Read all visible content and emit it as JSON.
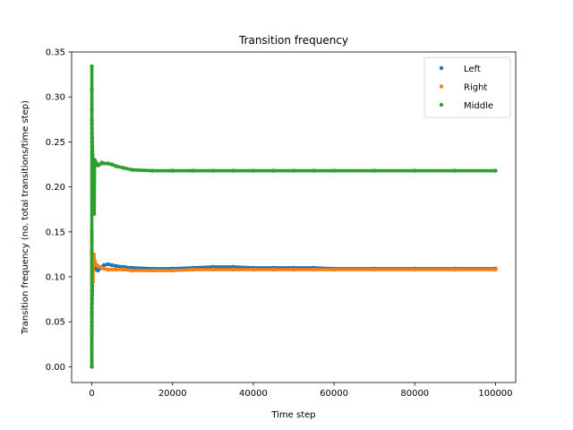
{
  "chart_data": {
    "type": "scatter",
    "title": "Transition frequency",
    "xlabel": "Time step",
    "ylabel": "Transition frequency (no. total transitions/time step)",
    "xlim": [
      -5000,
      105000
    ],
    "ylim": [
      -0.0175,
      0.35
    ],
    "xticks": [
      0,
      20000,
      40000,
      60000,
      80000,
      100000
    ],
    "xtick_labels": [
      "0",
      "20000",
      "40000",
      "60000",
      "80000",
      "100000"
    ],
    "yticks": [
      0.0,
      0.05,
      0.1,
      0.15,
      0.2,
      0.25,
      0.3,
      0.35
    ],
    "ytick_labels": [
      "0.00",
      "0.05",
      "0.10",
      "0.15",
      "0.20",
      "0.25",
      "0.30",
      "0.35"
    ],
    "grid": false,
    "legend_position": "top-right",
    "series": [
      {
        "name": "Left",
        "color": "#1f77b4",
        "points": [
          [
            0,
            0.0
          ],
          [
            5,
            0.04
          ],
          [
            10,
            0.045
          ],
          [
            15,
            0.05
          ],
          [
            20,
            0.06
          ],
          [
            30,
            0.065
          ],
          [
            40,
            0.07
          ],
          [
            60,
            0.075
          ],
          [
            80,
            0.08
          ],
          [
            100,
            0.085
          ],
          [
            130,
            0.09
          ],
          [
            160,
            0.095
          ],
          [
            200,
            0.1
          ],
          [
            250,
            0.104
          ],
          [
            300,
            0.108
          ],
          [
            400,
            0.112
          ],
          [
            500,
            0.115
          ],
          [
            700,
            0.113
          ],
          [
            900,
            0.11
          ],
          [
            1200,
            0.108
          ],
          [
            1500,
            0.107
          ],
          [
            2000,
            0.109
          ],
          [
            2500,
            0.111
          ],
          [
            3000,
            0.113
          ],
          [
            4000,
            0.114
          ],
          [
            5000,
            0.113
          ],
          [
            6000,
            0.112
          ],
          [
            8000,
            0.111
          ],
          [
            10000,
            0.11
          ],
          [
            15000,
            0.109
          ],
          [
            20000,
            0.109
          ],
          [
            25000,
            0.11
          ],
          [
            30000,
            0.111
          ],
          [
            35000,
            0.111
          ],
          [
            40000,
            0.11
          ],
          [
            45000,
            0.11
          ],
          [
            50000,
            0.11
          ],
          [
            55000,
            0.11
          ],
          [
            60000,
            0.109
          ],
          [
            70000,
            0.109
          ],
          [
            80000,
            0.109
          ],
          [
            90000,
            0.109
          ],
          [
            100000,
            0.109
          ]
        ]
      },
      {
        "name": "Right",
        "color": "#ff7f0e",
        "points": [
          [
            0,
            0.0
          ],
          [
            5,
            0.15
          ],
          [
            10,
            0.145
          ],
          [
            15,
            0.14
          ],
          [
            20,
            0.13
          ],
          [
            30,
            0.125
          ],
          [
            40,
            0.12
          ],
          [
            60,
            0.118
          ],
          [
            80,
            0.115
          ],
          [
            100,
            0.113
          ],
          [
            130,
            0.11
          ],
          [
            160,
            0.108
          ],
          [
            200,
            0.105
          ],
          [
            250,
            0.1
          ],
          [
            300,
            0.095
          ],
          [
            400,
            0.12
          ],
          [
            500,
            0.125
          ],
          [
            700,
            0.118
          ],
          [
            900,
            0.115
          ],
          [
            1200,
            0.113
          ],
          [
            1500,
            0.112
          ],
          [
            2000,
            0.111
          ],
          [
            2500,
            0.11
          ],
          [
            3000,
            0.109
          ],
          [
            4000,
            0.108
          ],
          [
            5000,
            0.108
          ],
          [
            6000,
            0.108
          ],
          [
            8000,
            0.108
          ],
          [
            10000,
            0.107
          ],
          [
            15000,
            0.107
          ],
          [
            20000,
            0.107
          ],
          [
            25000,
            0.108
          ],
          [
            30000,
            0.108
          ],
          [
            35000,
            0.108
          ],
          [
            40000,
            0.108
          ],
          [
            45000,
            0.108
          ],
          [
            50000,
            0.108
          ],
          [
            55000,
            0.108
          ],
          [
            60000,
            0.108
          ],
          [
            70000,
            0.108
          ],
          [
            80000,
            0.108
          ],
          [
            90000,
            0.108
          ],
          [
            100000,
            0.108
          ]
        ]
      },
      {
        "name": "Middle",
        "color": "#2ca02c",
        "points": [
          [
            0,
            0.0
          ],
          [
            5,
            0.334
          ],
          [
            10,
            0.308
          ],
          [
            15,
            0.286
          ],
          [
            20,
            0.274
          ],
          [
            30,
            0.27
          ],
          [
            40,
            0.265
          ],
          [
            60,
            0.26
          ],
          [
            80,
            0.255
          ],
          [
            100,
            0.25
          ],
          [
            130,
            0.245
          ],
          [
            160,
            0.24
          ],
          [
            200,
            0.235
          ],
          [
            250,
            0.23
          ],
          [
            300,
            0.225
          ],
          [
            350,
            0.22
          ],
          [
            400,
            0.21
          ],
          [
            450,
            0.2
          ],
          [
            500,
            0.19
          ],
          [
            550,
            0.18
          ],
          [
            600,
            0.17
          ],
          [
            700,
            0.23
          ],
          [
            900,
            0.228
          ],
          [
            1200,
            0.226
          ],
          [
            1500,
            0.224
          ],
          [
            2000,
            0.225
          ],
          [
            2500,
            0.227
          ],
          [
            3000,
            0.226
          ],
          [
            4000,
            0.226
          ],
          [
            5000,
            0.225
          ],
          [
            6000,
            0.223
          ],
          [
            8000,
            0.221
          ],
          [
            10000,
            0.219
          ],
          [
            15000,
            0.218
          ],
          [
            20000,
            0.218
          ],
          [
            25000,
            0.218
          ],
          [
            30000,
            0.218
          ],
          [
            35000,
            0.218
          ],
          [
            40000,
            0.218
          ],
          [
            45000,
            0.218
          ],
          [
            50000,
            0.218
          ],
          [
            55000,
            0.218
          ],
          [
            60000,
            0.218
          ],
          [
            70000,
            0.218
          ],
          [
            80000,
            0.218
          ],
          [
            90000,
            0.218
          ],
          [
            100000,
            0.218
          ]
        ]
      }
    ]
  }
}
